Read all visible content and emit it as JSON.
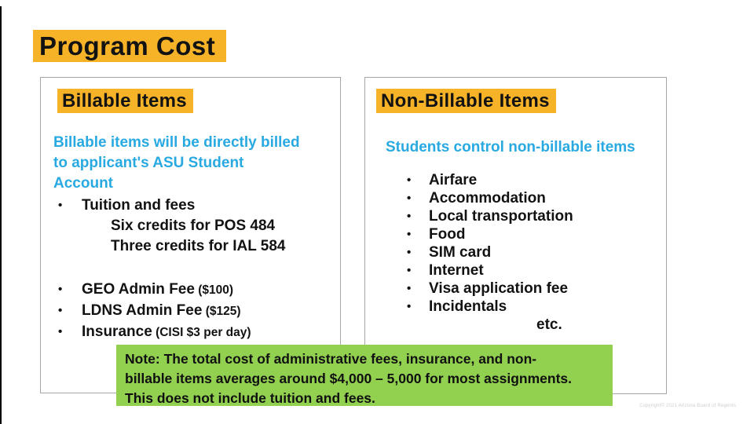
{
  "slide": {
    "title": "Program Cost",
    "copyright": "Copyright© 2021 Arizona Board of Regents"
  },
  "colors": {
    "highlight_yellow": "#F6B328",
    "accent_blue": "#29A9E1",
    "note_green": "#92D050",
    "panel_border": "#A6A6A6",
    "text_black": "#121212"
  },
  "left_panel": {
    "heading": "Billable Items",
    "intro": "Billable items will be directly billed\nto applicant's ASU Student\nAccount",
    "items": [
      {
        "bullet": true,
        "indent": 0,
        "text": "Tuition and fees"
      },
      {
        "bullet": false,
        "indent": 1,
        "text": "Six credits for POS 484"
      },
      {
        "bullet": false,
        "indent": 1,
        "text": "Three credits for IAL 584"
      },
      {
        "spacer": true
      },
      {
        "bullet": true,
        "indent": 0,
        "text": "GEO Admin Fee",
        "note": "($100)"
      },
      {
        "bullet": true,
        "indent": 0,
        "text": "LDNS Admin Fee",
        "note": "($125)"
      },
      {
        "bullet": true,
        "indent": 0,
        "text": "Insurance",
        "note": "(CISI $3 per day)"
      }
    ]
  },
  "right_panel": {
    "heading": "Non-Billable Items",
    "intro": "Students control non-billable items",
    "items": [
      {
        "bullet": true,
        "indent": 0,
        "text": "Airfare"
      },
      {
        "bullet": true,
        "indent": 0,
        "text": "Accommodation"
      },
      {
        "bullet": true,
        "indent": 0,
        "text": "Local transportation"
      },
      {
        "bullet": true,
        "indent": 0,
        "text": "Food"
      },
      {
        "bullet": true,
        "indent": 0,
        "text": "SIM card"
      },
      {
        "bullet": true,
        "indent": 0,
        "text": "Internet"
      },
      {
        "bullet": true,
        "indent": 0,
        "text": "Visa application fee"
      },
      {
        "bullet": true,
        "indent": 0,
        "text": "Incidentals"
      },
      {
        "bullet": false,
        "indent": 2,
        "text": "etc."
      }
    ]
  },
  "note": {
    "text": "Note: The total cost of administrative fees, insurance, and non-\nbillable items averages around $4,000 – 5,000 for most assignments.\nThis does not include tuition and fees."
  }
}
